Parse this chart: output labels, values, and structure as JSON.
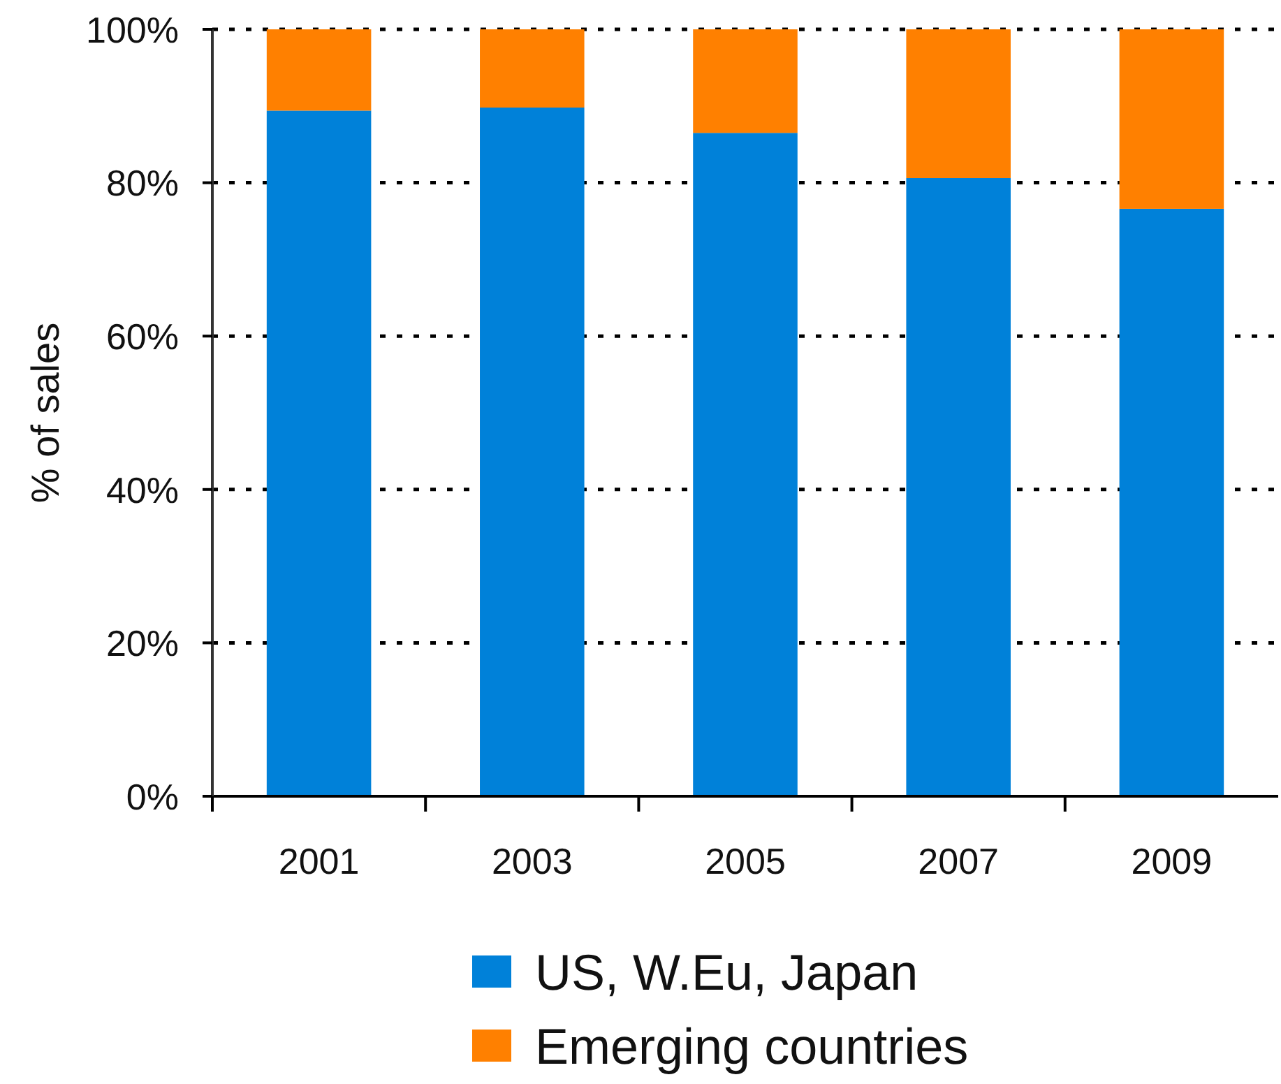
{
  "chart_data": {
    "type": "bar",
    "ylabel": "% of sales",
    "categories": [
      "2001",
      "2003",
      "2005",
      "2007",
      "2009"
    ],
    "series": [
      {
        "name": "US, W.Eu, Japan",
        "color": "#0081d9",
        "values": [
          89.4,
          89.8,
          86.5,
          80.6,
          76.6
        ]
      },
      {
        "name": "Emerging countries",
        "color": "#ff8000",
        "values": [
          10.6,
          10.2,
          13.5,
          19.4,
          23.4
        ]
      }
    ],
    "stacked": true,
    "ylim": [
      0,
      100
    ],
    "yticks": [
      {
        "value": 0,
        "label": "0%"
      },
      {
        "value": 20,
        "label": "20%"
      },
      {
        "value": 40,
        "label": "40%"
      },
      {
        "value": 60,
        "label": "60%"
      },
      {
        "value": 80,
        "label": "80%"
      },
      {
        "value": 100,
        "label": "100%"
      }
    ],
    "grid": "y",
    "legend": "bottom"
  }
}
